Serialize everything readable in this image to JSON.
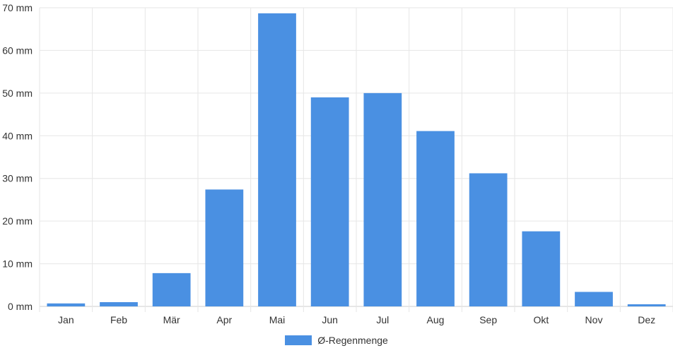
{
  "chart_data": {
    "type": "bar",
    "categories": [
      "Jan",
      "Feb",
      "Mär",
      "Apr",
      "Mai",
      "Jun",
      "Jul",
      "Aug",
      "Sep",
      "Okt",
      "Nov",
      "Dez"
    ],
    "series": [
      {
        "name": "Ø-Regenmenge",
        "color": "#4a90e2",
        "values": [
          0.7,
          1.0,
          7.8,
          27.4,
          68.7,
          49.0,
          50.0,
          41.1,
          31.2,
          17.6,
          3.4,
          0.5
        ]
      }
    ],
    "ylim": [
      0,
      70
    ],
    "y_ticks": [
      0,
      10,
      20,
      30,
      40,
      50,
      60,
      70
    ],
    "y_tick_labels": [
      "0 mm",
      "10 mm",
      "20 mm",
      "30 mm",
      "40 mm",
      "50 mm",
      "60 mm",
      "70 mm"
    ],
    "grid": true,
    "legend_position": "bottom"
  }
}
